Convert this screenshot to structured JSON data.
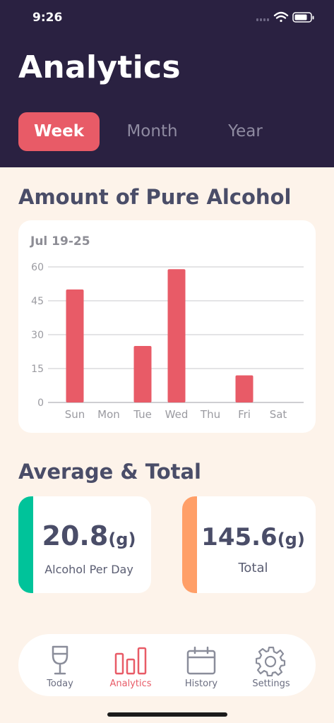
{
  "status_bar": {
    "time": "9:26"
  },
  "header": {
    "title": "Analytics"
  },
  "period_tabs": [
    {
      "label": "Week",
      "active": true
    },
    {
      "label": "Month",
      "active": false
    },
    {
      "label": "Year",
      "active": false
    }
  ],
  "chart_section": {
    "title": "Amount of Pure Alcohol",
    "period": "Jul 19-25"
  },
  "chart_data": {
    "type": "bar",
    "categories": [
      "Sun",
      "Mon",
      "Tue",
      "Wed",
      "Thu",
      "Fri",
      "Sat"
    ],
    "values": [
      50,
      0,
      25,
      59,
      0,
      12,
      0
    ],
    "yticks": [
      0,
      15,
      30,
      45,
      60
    ],
    "ylim": [
      0,
      60
    ],
    "bar_color": "#e85b67",
    "grid": true
  },
  "summary_section": {
    "title": "Average & Total",
    "cards": [
      {
        "value": "20.8",
        "unit": "(g)",
        "label": "Alcohol Per Day",
        "accent": "#00c39a"
      },
      {
        "value": "145.6",
        "unit": "(g)",
        "label": "Total",
        "accent": "#ff9f68"
      }
    ]
  },
  "tab_bar": {
    "items": [
      {
        "label": "Today",
        "icon": "wine-glass-icon",
        "active": false
      },
      {
        "label": "Analytics",
        "icon": "bar-chart-icon",
        "active": true
      },
      {
        "label": "History",
        "icon": "calendar-icon",
        "active": false
      },
      {
        "label": "Settings",
        "icon": "gear-icon",
        "active": false
      }
    ],
    "active_color": "#e85b67",
    "inactive_color": "#8a8d9a"
  }
}
